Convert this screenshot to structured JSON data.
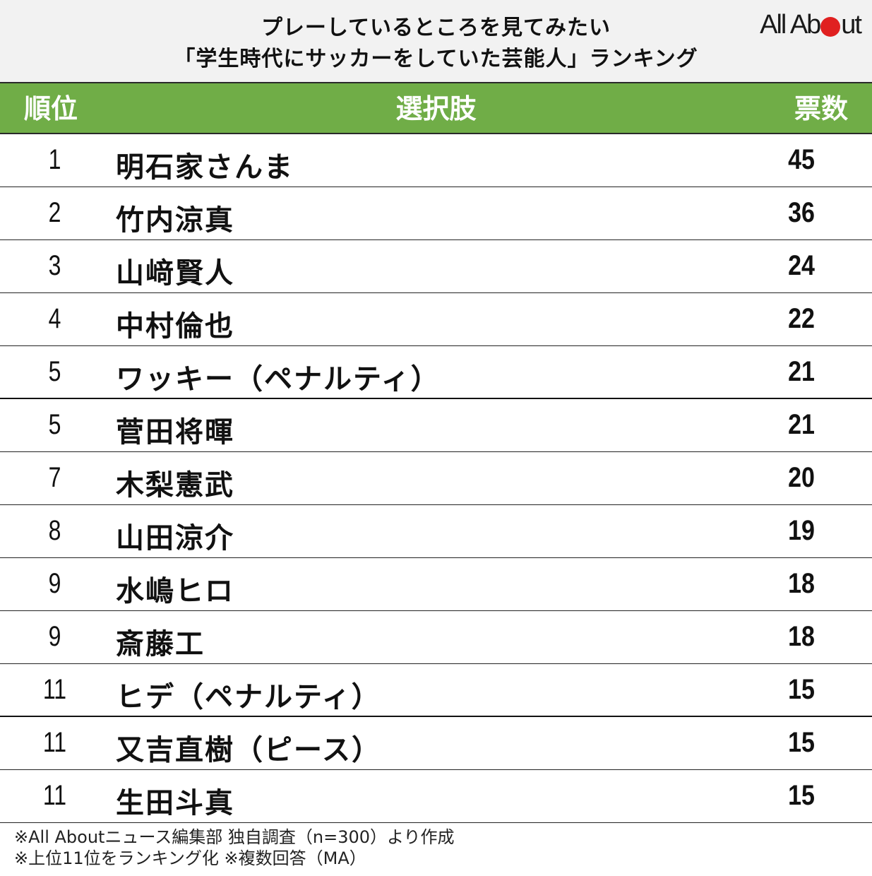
{
  "title": {
    "line1": "プレーしているところを見てみたい",
    "line2": "「学生時代にサッカーをしていた芸能人」ランキング"
  },
  "logo": {
    "text_before": "All Ab",
    "text_after": "ut",
    "dot_color": "#E02020"
  },
  "colors": {
    "header_bg": "#70AD47",
    "title_bg": "#F2F2F2",
    "header_text": "#FFFFFF"
  },
  "table": {
    "headers": {
      "rank": "順位",
      "choice": "選択肢",
      "votes": "票数"
    },
    "rows": [
      {
        "rank": "1",
        "name": "明石家さんま",
        "votes": "45"
      },
      {
        "rank": "2",
        "name": "竹内涼真",
        "votes": "36"
      },
      {
        "rank": "3",
        "name": "山﨑賢人",
        "votes": "24"
      },
      {
        "rank": "4",
        "name": "中村倫也",
        "votes": "22"
      },
      {
        "rank": "5",
        "name": "ワッキー（ペナルティ）",
        "votes": "21"
      },
      {
        "rank": "5",
        "name": "菅田将暉",
        "votes": "21"
      },
      {
        "rank": "7",
        "name": "木梨憲武",
        "votes": "20"
      },
      {
        "rank": "8",
        "name": "山田涼介",
        "votes": "19"
      },
      {
        "rank": "9",
        "name": "水嶋ヒロ",
        "votes": "18"
      },
      {
        "rank": "9",
        "name": "斎藤工",
        "votes": "18"
      },
      {
        "rank": "11",
        "name": "ヒデ（ペナルティ）",
        "votes": "15"
      },
      {
        "rank": "11",
        "name": "又吉直樹（ピース）",
        "votes": "15"
      },
      {
        "rank": "11",
        "name": "生田斗真",
        "votes": "15"
      }
    ]
  },
  "footer": {
    "line1": "※All Aboutニュース編集部 独自調査（n=300）より作成",
    "line2": "※上位11位をランキング化 ※複数回答（MA）"
  },
  "chart_data": {
    "type": "table",
    "title": "プレーしているところを見てみたい「学生時代にサッカーをしていた芸能人」ランキング",
    "columns": [
      "順位",
      "選択肢",
      "票数"
    ],
    "categories": [
      "明石家さんま",
      "竹内涼真",
      "山﨑賢人",
      "中村倫也",
      "ワッキー（ペナルティ）",
      "菅田将暉",
      "木梨憲武",
      "山田涼介",
      "水嶋ヒロ",
      "斎藤工",
      "ヒデ（ペナルティ）",
      "又吉直樹（ピース）",
      "生田斗真"
    ],
    "ranks": [
      1,
      2,
      3,
      4,
      5,
      5,
      7,
      8,
      9,
      9,
      11,
      11,
      11
    ],
    "values": [
      45,
      36,
      24,
      22,
      21,
      21,
      20,
      19,
      18,
      18,
      15,
      15,
      15
    ],
    "notes": [
      "※All Aboutニュース編集部 独自調査（n=300）より作成",
      "※上位11位をランキング化 ※複数回答（MA）"
    ]
  }
}
